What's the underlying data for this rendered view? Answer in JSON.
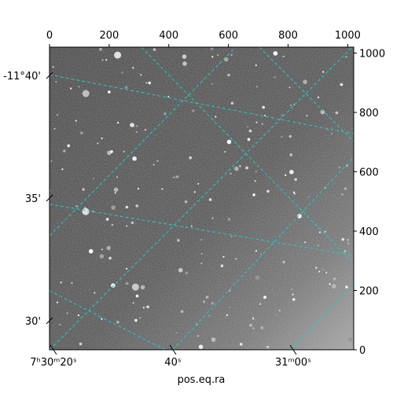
{
  "chart_data": {
    "type": "image",
    "colormap": "gray",
    "xlabel": "pos.eq.ra",
    "ylabel": "",
    "pixel_axes": {
      "x": {
        "range": [
          0,
          1020
        ],
        "ticks": [
          "0",
          "200",
          "400",
          "600",
          "800",
          "1000"
        ],
        "tick_values": [
          0,
          200,
          400,
          600,
          800,
          1000
        ],
        "position": "top"
      },
      "y": {
        "range": [
          0,
          1020
        ],
        "ticks": [
          "0",
          "200",
          "400",
          "600",
          "800",
          "1000"
        ],
        "tick_values": [
          0,
          200,
          400,
          600,
          800,
          1000
        ],
        "position": "right"
      }
    },
    "world_axes": {
      "ra_ticks": [
        "7ʰ30ᵐ20ˢ",
        "40ˢ",
        "31ᵐ00ˢ"
      ],
      "dec_ticks": [
        "-11°40'",
        "35'",
        "30'"
      ]
    },
    "grid": {
      "on": true,
      "color": "#22cccc",
      "style": "dashed"
    }
  }
}
